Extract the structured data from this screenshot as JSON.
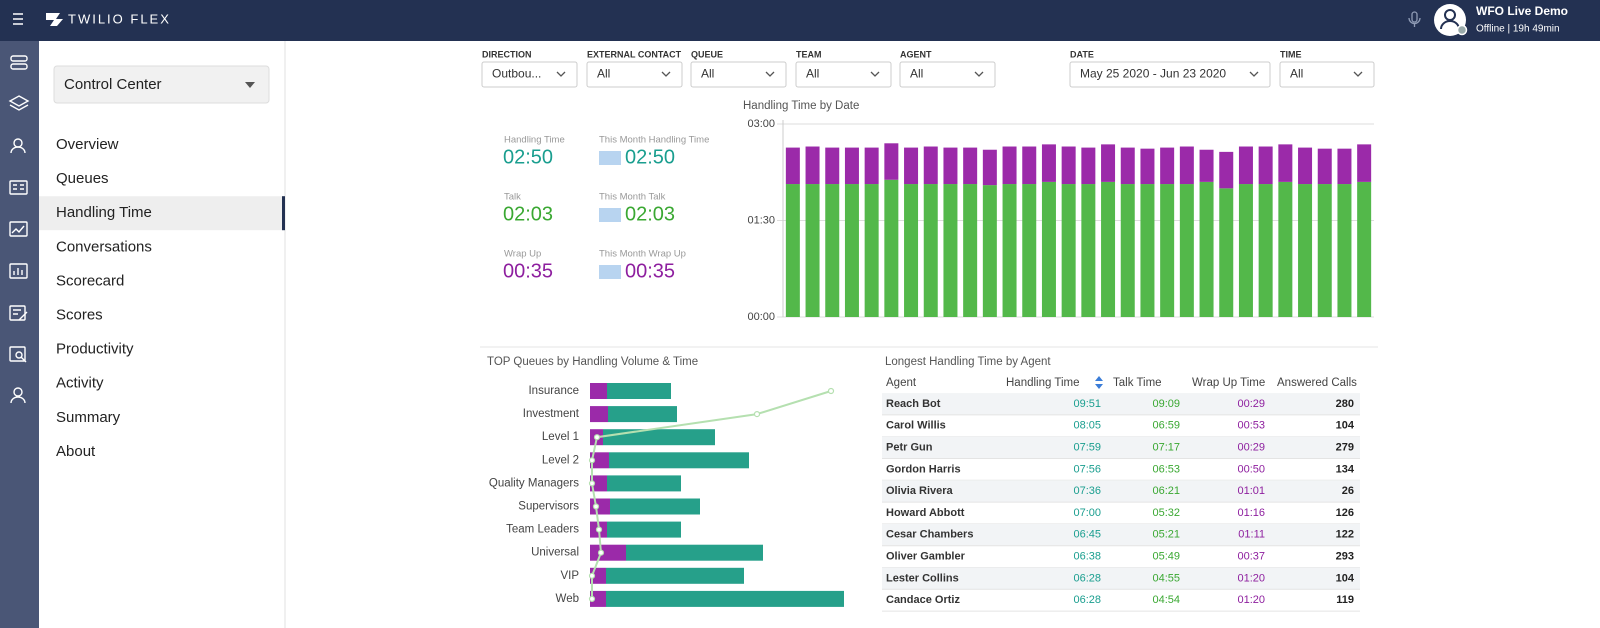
{
  "header": {
    "brand": "TWILIO FLEX",
    "user": "WFO Live Demo",
    "status": "Offline | 19h 49min"
  },
  "nav": {
    "selector": "Control Center",
    "active": 2,
    "items": [
      "Overview",
      "Queues",
      "Handling Time",
      "Conversations",
      "Scorecard",
      "Scores",
      "Productivity",
      "Activity",
      "Summary",
      "About"
    ]
  },
  "filters": [
    {
      "label": "DIRECTION",
      "value": "Outbou..."
    },
    {
      "label": "EXTERNAL CONTACT",
      "value": "All"
    },
    {
      "label": "QUEUE",
      "value": "All"
    },
    {
      "label": "TEAM",
      "value": "All"
    },
    {
      "label": "AGENT",
      "value": "All"
    },
    {
      "label": "DATE",
      "value": "May 25 2020 - Jun 23 2020"
    },
    {
      "label": "TIME",
      "value": "All"
    }
  ],
  "kpis": [
    {
      "label": "Handling Time",
      "value": "02:50",
      "month_label": "This Month Handling Time",
      "month_value": "02:50",
      "color": "#1a9e8f"
    },
    {
      "label": "Talk",
      "value": "02:03",
      "month_label": "This Month Talk",
      "month_value": "02:03",
      "color": "#3aa832"
    },
    {
      "label": "Wrap Up",
      "value": "00:35",
      "month_label": "This Month Wrap Up",
      "month_value": "00:35",
      "color": "#8e1f9f"
    }
  ],
  "chart_data": [
    {
      "type": "bar",
      "stacked": true,
      "orientation": "vertical",
      "title": "Handling Time by Date",
      "categories": [
        null,
        null,
        null,
        null,
        null,
        null,
        null,
        null,
        null,
        null,
        null,
        null,
        null,
        null,
        null,
        null,
        null,
        null,
        null,
        null,
        null,
        null,
        null,
        null,
        null,
        null,
        null,
        null,
        null,
        null
      ],
      "series": [
        {
          "color": "#53b84a",
          "values": [
            124,
            124,
            124,
            124,
            124,
            128,
            124,
            124,
            124,
            124,
            123,
            124,
            124,
            126,
            124,
            124,
            126,
            124,
            124,
            124,
            124,
            126,
            120,
            124,
            124,
            126,
            124,
            124,
            124,
            126
          ]
        },
        {
          "color": "#9b2aa9",
          "values": [
            34,
            35,
            34,
            34,
            34,
            34,
            34,
            35,
            34,
            34,
            33,
            35,
            35,
            35,
            35,
            34,
            35,
            34,
            33,
            34,
            35,
            30,
            34,
            35,
            35,
            35,
            34,
            33,
            33,
            35
          ]
        }
      ],
      "ylim": [
        0,
        180
      ],
      "yticks": [
        {
          "value": 0,
          "label": "00:00"
        },
        {
          "value": 90,
          "label": "01:30"
        },
        {
          "value": 180,
          "label": "03:00"
        }
      ],
      "grid": true
    },
    {
      "type": "bar",
      "stacked": true,
      "orientation": "horizontal",
      "title": "TOP Queues by Handling Volume & Time",
      "categories": [
        "Insurance",
        "Investment",
        "Level 1",
        "Level 2",
        "Quality Managers",
        "Supervisors",
        "Team Leaders",
        "Universal",
        "VIP",
        "Web"
      ],
      "series": [
        {
          "color": "#9b2aa9",
          "values": [
            17,
            18,
            13,
            19,
            17,
            20,
            17,
            36,
            16,
            16
          ]
        },
        {
          "color": "#26a08a",
          "values": [
            64,
            69,
            112,
            140,
            74,
            90,
            74,
            137,
            138,
            238
          ]
        },
        {
          "type": "line",
          "color": "#b5e0b0",
          "values": [
            241,
            167,
            7,
            2,
            2,
            6,
            9,
            11,
            2,
            2
          ]
        }
      ]
    }
  ],
  "table": {
    "title": "Longest Handling Time by Agent",
    "columns": [
      "Agent",
      "Handling Time",
      "Talk Time",
      "Wrap Up Time",
      "Answered Calls"
    ],
    "column_colors": [
      "#333",
      "#1a9e8f",
      "#3aa832",
      "#8e1f9f",
      "#222"
    ],
    "rows": [
      [
        "Reach Bot",
        "09:51",
        "09:09",
        "00:29",
        280
      ],
      [
        "Carol Willis",
        "08:05",
        "06:59",
        "00:53",
        104
      ],
      [
        "Petr Gun",
        "07:59",
        "07:17",
        "00:29",
        279
      ],
      [
        "Gordon Harris",
        "07:56",
        "06:53",
        "00:50",
        134
      ],
      [
        "Olivia Rivera",
        "07:36",
        "06:21",
        "01:01",
        26
      ],
      [
        "Howard Abbott",
        "07:00",
        "05:32",
        "01:16",
        126
      ],
      [
        "Cesar Chambers",
        "06:45",
        "05:21",
        "01:11",
        122
      ],
      [
        "Oliver Gambler",
        "06:38",
        "05:49",
        "00:37",
        293
      ],
      [
        "Lester Collins",
        "06:28",
        "04:55",
        "01:20",
        104
      ],
      [
        "Candace Ortiz",
        "06:28",
        "04:54",
        "01:20",
        119
      ]
    ]
  }
}
